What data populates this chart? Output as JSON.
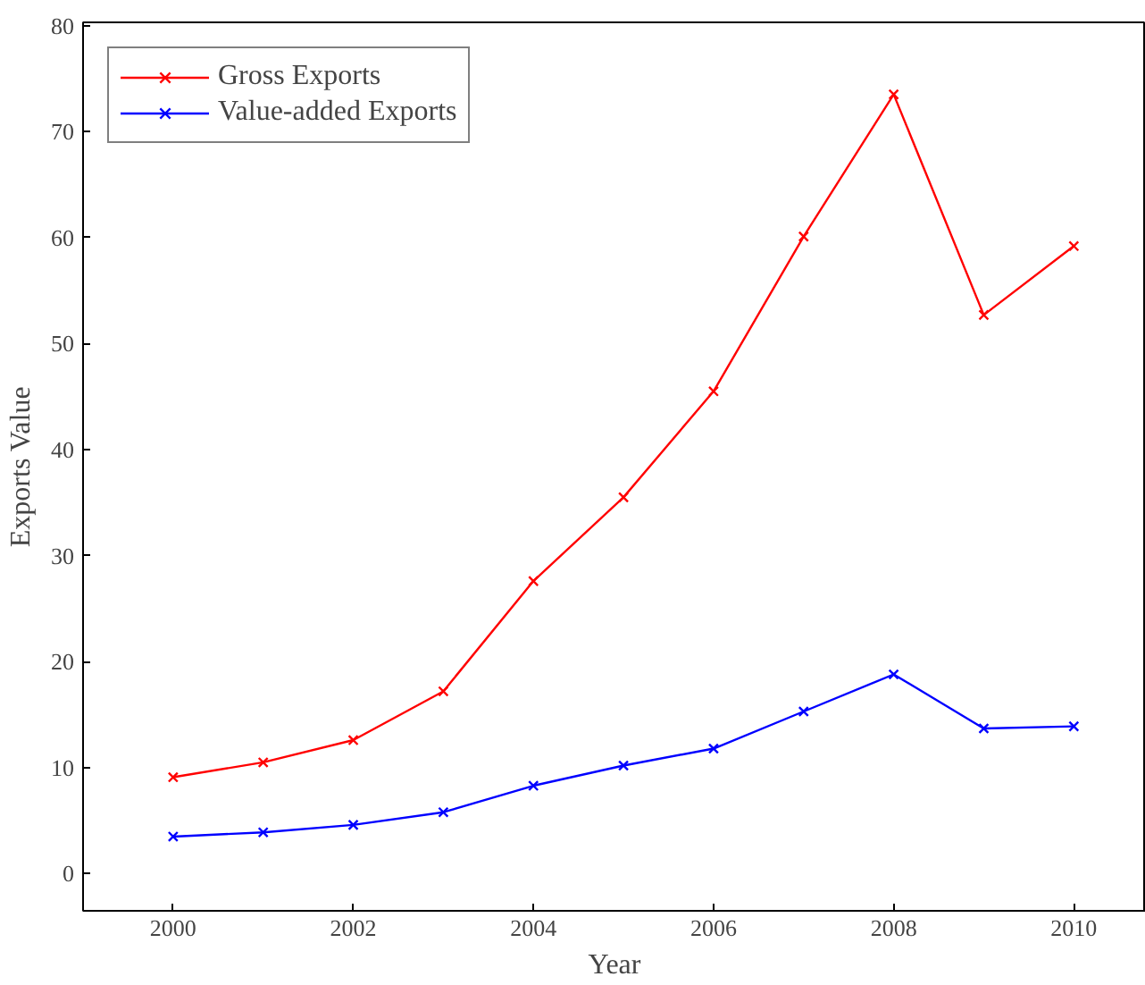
{
  "chart_data": {
    "type": "line",
    "xlabel": "Year",
    "ylabel": "Exports Value",
    "x": [
      2000,
      2001,
      2002,
      2003,
      2004,
      2005,
      2006,
      2007,
      2008,
      2009,
      2010
    ],
    "series": [
      {
        "name": "Gross Exports",
        "color": "#ff0000",
        "values": [
          9.1,
          10.5,
          12.6,
          17.2,
          27.6,
          35.5,
          45.5,
          60.1,
          73.5,
          52.7,
          59.2
        ]
      },
      {
        "name": "Value-added Exports",
        "color": "#0000ff",
        "values": [
          3.5,
          3.9,
          4.6,
          5.8,
          8.3,
          10.2,
          11.8,
          15.3,
          18.8,
          13.7,
          13.9
        ]
      }
    ],
    "xlim": [
      1999,
      2010.8
    ],
    "ylim": [
      -3.5,
      80.3
    ],
    "xticks": [
      2000,
      2002,
      2004,
      2006,
      2008,
      2010
    ],
    "yticks": [
      0,
      10,
      20,
      30,
      40,
      50,
      60,
      70,
      80
    ],
    "grid": false,
    "legend": "top left",
    "marker": "cross",
    "line_style": "solid"
  }
}
